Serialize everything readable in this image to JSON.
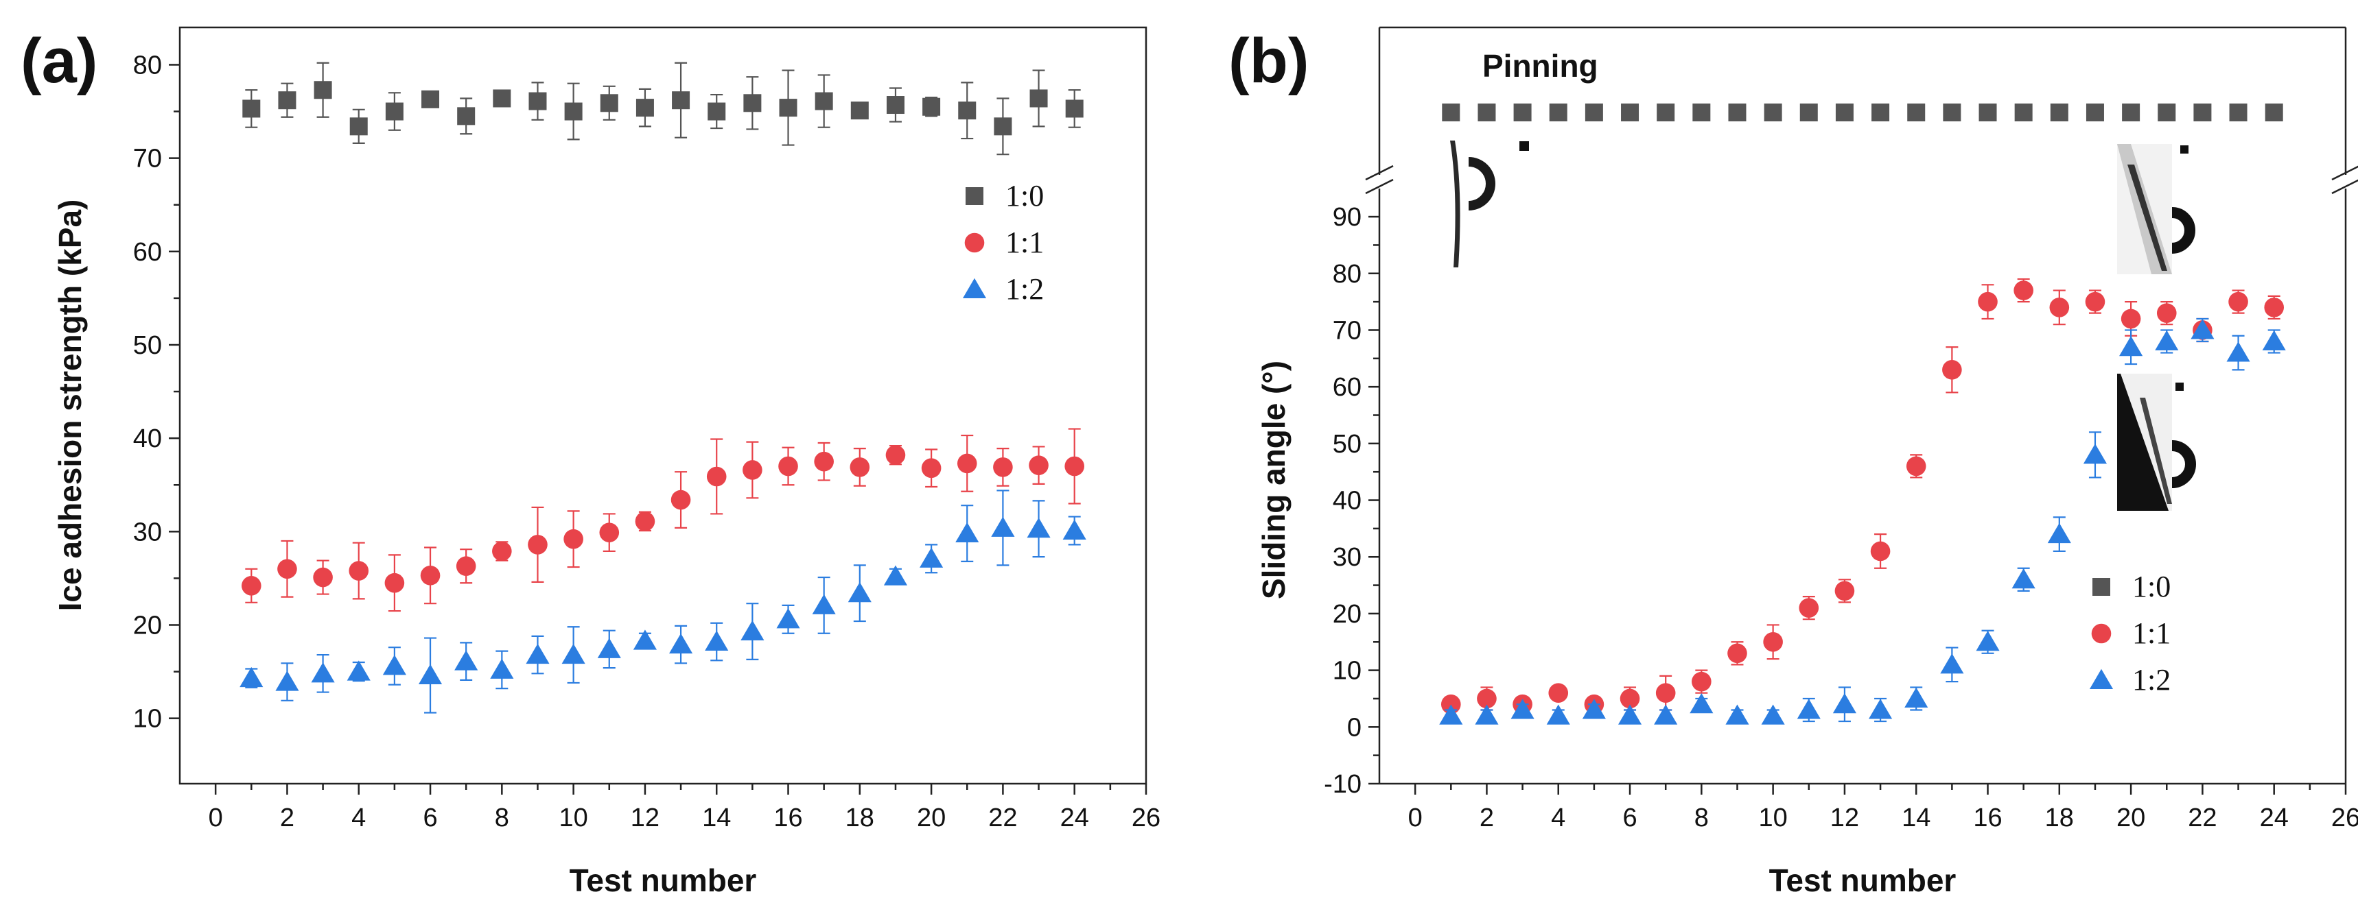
{
  "chart_data": [
    {
      "type": "scatter",
      "panel_label": "(a)",
      "xlabel": "Test number",
      "ylabel": "Ice adhesion strength (kPa)",
      "xlim": [
        -1,
        26
      ],
      "ylim": [
        3,
        84
      ],
      "xticks": [
        0,
        2,
        4,
        6,
        8,
        10,
        12,
        14,
        16,
        18,
        20,
        22,
        24,
        26
      ],
      "xtick_labels": [
        "0",
        "2",
        "4",
        "6",
        "8",
        "10",
        "12",
        "14",
        "16",
        "18",
        "20",
        "22",
        "24",
        "26"
      ],
      "yticks": [
        10,
        20,
        30,
        40,
        50,
        60,
        70,
        80
      ],
      "ytick_labels": [
        "10",
        "20",
        "30",
        "40",
        "50",
        "60",
        "70",
        "80"
      ],
      "legend_position": "right",
      "x": [
        1,
        2,
        3,
        4,
        5,
        6,
        7,
        8,
        9,
        10,
        11,
        12,
        13,
        14,
        15,
        16,
        17,
        18,
        19,
        20,
        21,
        22,
        23,
        24
      ],
      "series": [
        {
          "name": "1:0",
          "marker": "square",
          "color": "#555555",
          "values": [
            75.3,
            76.2,
            77.3,
            73.4,
            75.0,
            76.3,
            74.5,
            76.4,
            76.1,
            75.0,
            75.9,
            75.4,
            76.2,
            75.0,
            75.9,
            75.4,
            76.1,
            75.1,
            75.7,
            75.5,
            75.1,
            73.4,
            76.4,
            75.3
          ],
          "errors": [
            2.0,
            1.8,
            2.9,
            1.8,
            2.0,
            0.8,
            1.9,
            0.8,
            2.0,
            3.0,
            1.8,
            2.0,
            4.0,
            1.8,
            2.8,
            4.0,
            2.8,
            0.8,
            1.8,
            1.0,
            3.0,
            3.0,
            3.0,
            2.0
          ]
        },
        {
          "name": "1:1",
          "marker": "circle",
          "color": "#e8434a",
          "values": [
            24.2,
            26.0,
            25.1,
            25.8,
            24.5,
            25.3,
            26.3,
            27.9,
            28.6,
            29.2,
            29.9,
            31.1,
            33.4,
            35.9,
            36.6,
            37.0,
            37.5,
            36.9,
            38.2,
            36.8,
            37.3,
            36.9,
            37.1,
            37.0
          ],
          "errors": [
            1.8,
            3.0,
            1.8,
            3.0,
            3.0,
            3.0,
            1.8,
            1.0,
            4.0,
            3.0,
            2.0,
            1.0,
            3.0,
            4.0,
            3.0,
            2.0,
            2.0,
            2.0,
            1.0,
            2.0,
            3.0,
            2.0,
            2.0,
            4.0
          ]
        },
        {
          "name": "1:2",
          "marker": "triangle",
          "color": "#2b7de0",
          "values": [
            14.3,
            13.9,
            14.8,
            15.0,
            15.6,
            14.6,
            16.1,
            15.2,
            16.8,
            16.8,
            17.4,
            18.3,
            17.9,
            18.2,
            19.3,
            20.6,
            22.1,
            23.4,
            25.2,
            27.1,
            29.8,
            30.4,
            30.3,
            30.1
          ],
          "errors": [
            1.0,
            2.0,
            2.0,
            1.0,
            2.0,
            4.0,
            2.0,
            2.0,
            2.0,
            3.0,
            2.0,
            0.8,
            2.0,
            2.0,
            3.0,
            1.5,
            3.0,
            3.0,
            0.8,
            1.5,
            3.0,
            4.0,
            3.0,
            1.5
          ]
        }
      ]
    },
    {
      "type": "scatter",
      "panel_label": "(b)",
      "xlabel": "Test number",
      "ylabel": "Sliding angle (°)",
      "annotation": "Pinning",
      "xlim": [
        -1,
        26
      ],
      "ylim": [
        -10,
        94
      ],
      "broken_y_axis": true,
      "xticks": [
        0,
        2,
        4,
        6,
        8,
        10,
        12,
        14,
        16,
        18,
        20,
        22,
        24,
        26
      ],
      "xtick_labels": [
        "0",
        "2",
        "4",
        "6",
        "8",
        "10",
        "12",
        "14",
        "16",
        "18",
        "20",
        "22",
        "24",
        "26"
      ],
      "yticks": [
        -10,
        0,
        10,
        20,
        30,
        40,
        50,
        60,
        70,
        80,
        90
      ],
      "ytick_labels": [
        "-10",
        "0",
        "10",
        "20",
        "30",
        "40",
        "50",
        "60",
        "70",
        "80",
        "90"
      ],
      "legend_position": "lower-right",
      "x": [
        1,
        2,
        3,
        4,
        5,
        6,
        7,
        8,
        9,
        10,
        11,
        12,
        13,
        14,
        15,
        16,
        17,
        18,
        19,
        20,
        21,
        22,
        23,
        24
      ],
      "series": [
        {
          "name": "1:0",
          "marker": "square",
          "color": "#555555",
          "pinned": true,
          "values": [],
          "errors": []
        },
        {
          "name": "1:1",
          "marker": "circle",
          "color": "#e8434a",
          "values": [
            4,
            5,
            4,
            6,
            4,
            5,
            6,
            8,
            13,
            15,
            21,
            24,
            31,
            46,
            63,
            75,
            77,
            74,
            75,
            72,
            73,
            70,
            75,
            74
          ],
          "errors": [
            1,
            2,
            1,
            1,
            1,
            2,
            3,
            2,
            2,
            3,
            2,
            2,
            3,
            2,
            4,
            3,
            2,
            3,
            2,
            3,
            2,
            2,
            2,
            2
          ]
        },
        {
          "name": "1:2",
          "marker": "triangle",
          "color": "#2b7de0",
          "values": [
            2,
            2,
            3,
            2,
            3,
            2,
            2,
            4,
            2,
            2,
            3,
            4,
            3,
            5,
            11,
            15,
            26,
            34,
            48,
            67,
            68,
            70,
            66,
            68
          ],
          "errors": [
            1,
            1,
            1,
            1,
            1,
            1,
            1,
            1,
            1,
            1,
            2,
            3,
            2,
            2,
            3,
            2,
            2,
            3,
            4,
            3,
            2,
            2,
            3,
            2
          ]
        }
      ]
    }
  ]
}
